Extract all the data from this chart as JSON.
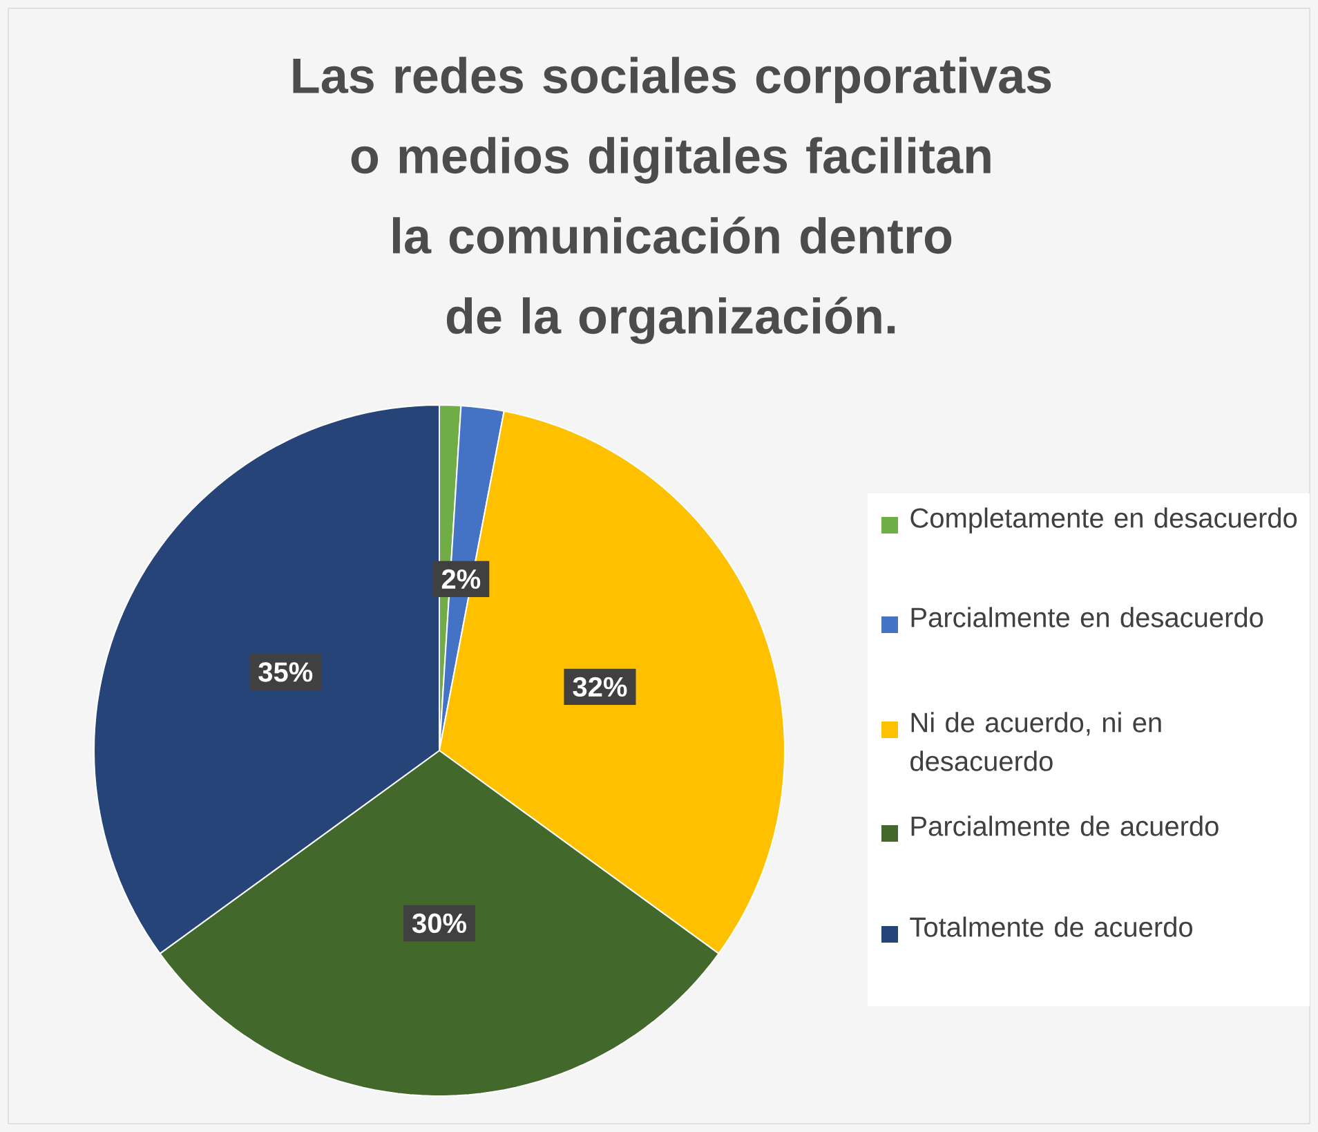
{
  "chart_data": {
    "type": "pie",
    "title": "Las redes sociales corporativas o medios digitales facilitan la comunicación dentro de la organización.",
    "categories": [
      "Completamente en desacuerdo",
      "Parcialmente en desacuerdo",
      "Ni de acuerdo, ni en desacuerdo",
      "Parcialmente de acuerdo",
      "Totalmente de acuerdo"
    ],
    "values": [
      1,
      2,
      32,
      30,
      35
    ],
    "value_labels": [
      null,
      "2%",
      "32%",
      "30%",
      "35%"
    ],
    "colors": [
      "#70ad47",
      "#4472c4",
      "#ffc000",
      "#43682b",
      "#264478"
    ],
    "legend": "right"
  }
}
